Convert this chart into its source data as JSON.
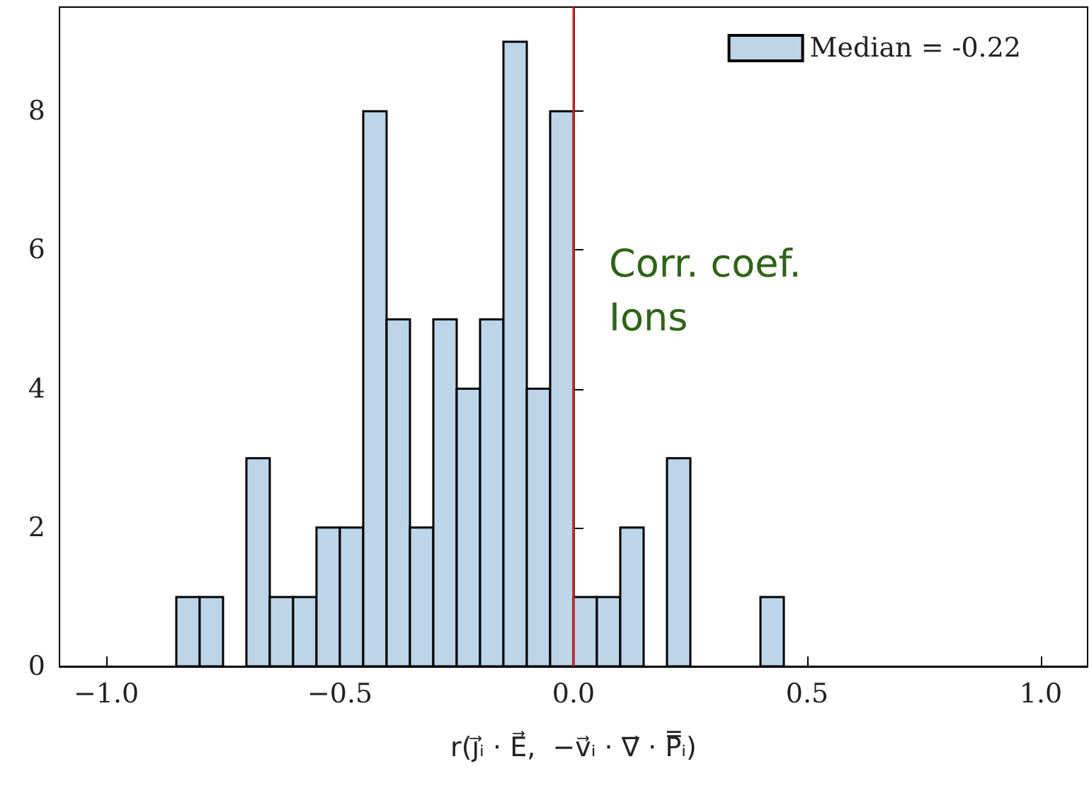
{
  "chart_data": {
    "type": "histogram",
    "bins": [
      -1.0,
      -0.95,
      -0.9,
      -0.85,
      -0.8,
      -0.75,
      -0.7,
      -0.65,
      -0.6,
      -0.55,
      -0.5,
      -0.45,
      -0.4,
      -0.35,
      -0.3,
      -0.25,
      -0.2,
      -0.15,
      -0.1,
      -0.05,
      0.0,
      0.05,
      0.1,
      0.15,
      0.2,
      0.25,
      0.3,
      0.35,
      0.4,
      0.45,
      0.5,
      0.55,
      0.6,
      0.65,
      0.7,
      0.75,
      0.8,
      0.85,
      0.9,
      0.95,
      1.0
    ],
    "series": [
      {
        "name": "Median = -0.22",
        "color": "#bcd5e9",
        "values": [
          0,
          0,
          0,
          1,
          1,
          0,
          3,
          1,
          1,
          2,
          2,
          8,
          5,
          2,
          5,
          4,
          5,
          9,
          4,
          8,
          1,
          1,
          2,
          0,
          3,
          0,
          0,
          0,
          1,
          0,
          0,
          0,
          0,
          0,
          0,
          0,
          0,
          0,
          0,
          0
        ]
      }
    ],
    "xlabel": "r(j⃗ᵢ · E⃗,  −v⃗ᵢ · ∇⃗ · P̿ᵢ)",
    "xlim": [
      -1.1,
      1.1
    ],
    "xticks": [
      {
        "value": -1.0,
        "label": "−1.0"
      },
      {
        "value": -0.5,
        "label": "−0.5"
      },
      {
        "value": 0.0,
        "label": "0.0"
      },
      {
        "value": 0.5,
        "label": "0.5"
      },
      {
        "value": 1.0,
        "label": "1.0"
      }
    ],
    "ylim": [
      0,
      9.5
    ],
    "yticks": [
      0,
      2,
      4,
      6,
      8
    ],
    "ref_lines": [
      {
        "axis": "x",
        "value": 0.0,
        "color": "#d62728"
      }
    ],
    "annotations": [
      "Corr. coef.\nIons"
    ],
    "legend": "top right",
    "grid": false
  }
}
